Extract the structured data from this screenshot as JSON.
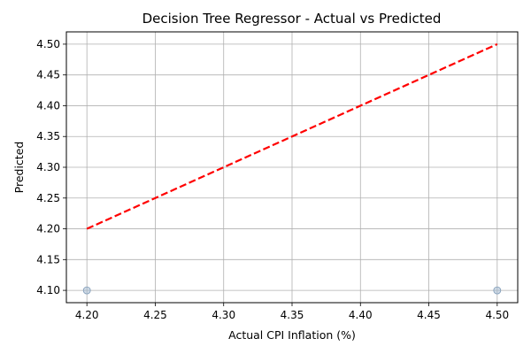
{
  "chart_data": {
    "type": "scatter",
    "title": "Decision Tree Regressor - Actual vs Predicted",
    "xlabel": "Actual CPI Inflation (%)",
    "ylabel": "Predicted",
    "xlim": [
      4.185,
      4.515
    ],
    "ylim": [
      4.08,
      4.52
    ],
    "xticks": [
      "4.20",
      "4.25",
      "4.30",
      "4.35",
      "4.40",
      "4.45",
      "4.50"
    ],
    "yticks": [
      "4.10",
      "4.15",
      "4.20",
      "4.25",
      "4.30",
      "4.35",
      "4.40",
      "4.45",
      "4.50"
    ],
    "grid": true,
    "points": [
      {
        "x": 4.2,
        "y": 4.1
      },
      {
        "x": 4.5,
        "y": 4.1
      }
    ],
    "reference_line": {
      "x": [
        4.2,
        4.5
      ],
      "y": [
        4.2,
        4.5
      ],
      "style": "dashed"
    },
    "colors": {
      "points": "#a6bcd1",
      "reference_line": "#ff0000",
      "grid": "#b0b0b0"
    }
  }
}
